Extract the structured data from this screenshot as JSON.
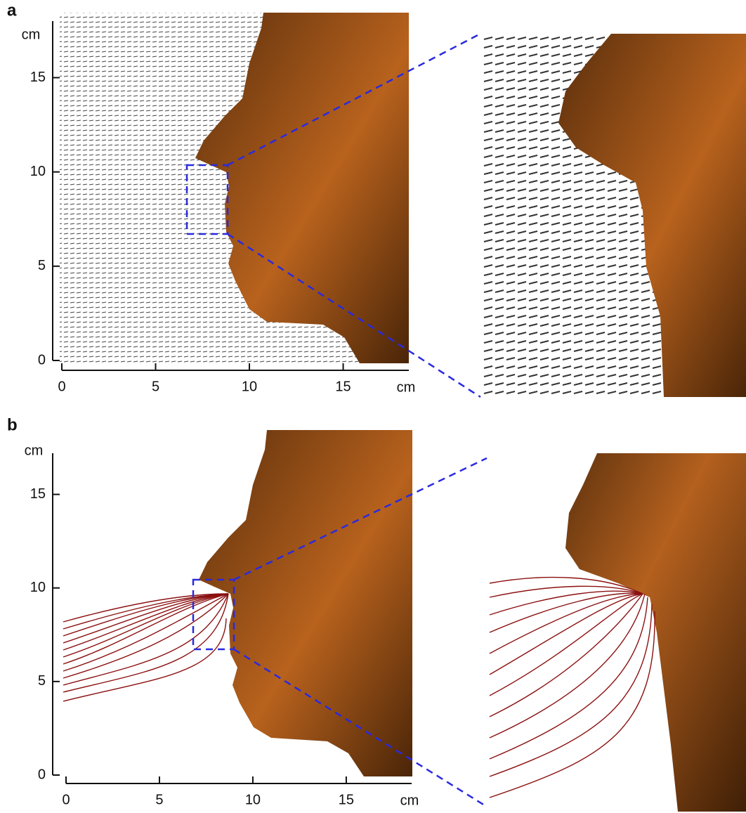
{
  "chart_data": [
    {
      "type": "vector-field",
      "title": "a",
      "x_label": "cm",
      "y_label": "cm",
      "xlim": [
        0,
        18.5
      ],
      "ylim": [
        0,
        18
      ],
      "xticks": [
        0,
        5,
        10,
        15
      ],
      "yticks": [
        0,
        5,
        10,
        15
      ]
    },
    {
      "type": "streamline",
      "title": "b",
      "x_label": "cm",
      "y_label": "cm",
      "xlim": [
        0,
        18.5
      ],
      "ylim": [
        0,
        17.2
      ],
      "xticks": [
        0,
        5,
        10,
        15
      ],
      "yticks": [
        0,
        5,
        10,
        15
      ]
    }
  ]
}
